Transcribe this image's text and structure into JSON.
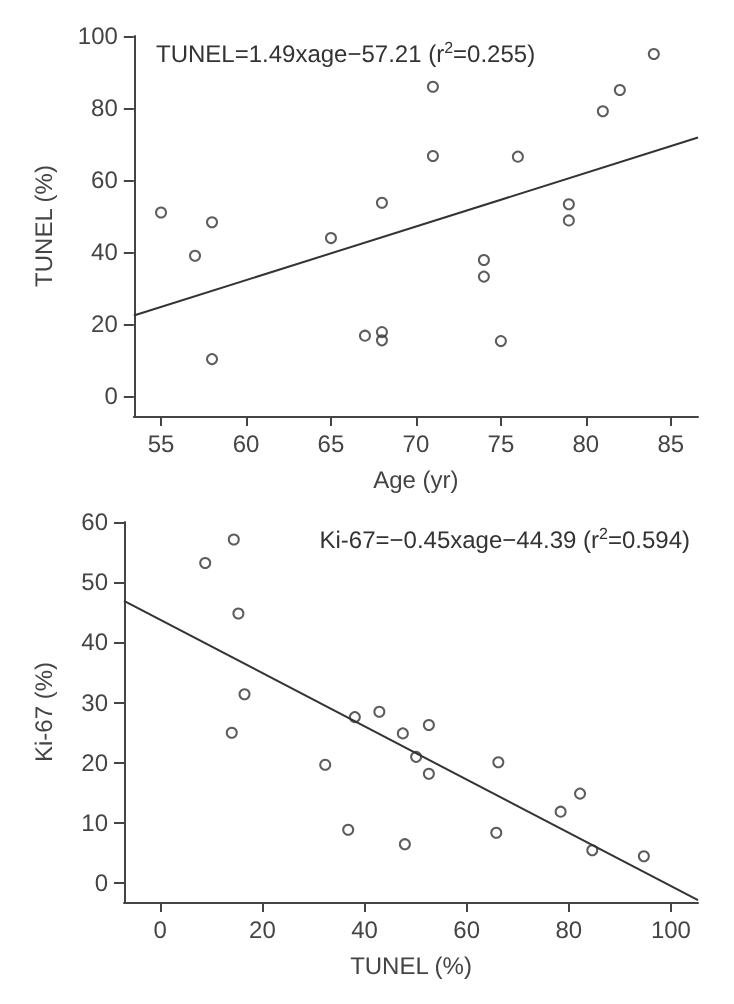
{
  "chart_data": [
    {
      "type": "scatter",
      "xlabel": "Age (yr)",
      "ylabel": "TUNEL (%)",
      "annotations": [
        "TUNEL=1.49xage−57.21 (r$^{2}$=0.255)"
      ],
      "xlim": [
        53.4,
        86.6
      ],
      "ylim": [
        -5.5,
        100
      ],
      "xticks": [
        55,
        60,
        65,
        70,
        75,
        80,
        85
      ],
      "yticks": [
        0,
        20,
        40,
        60,
        80,
        100
      ],
      "line_style": "solid",
      "series": [
        {
          "marker": "circle",
          "color": "#333333",
          "x": [
            55,
            57,
            58,
            58,
            65,
            67,
            68,
            68,
            68,
            71,
            71,
            74,
            74,
            75,
            76,
            79,
            79,
            81,
            82,
            84
          ],
          "values": [
            51,
            39,
            48.3,
            10.3,
            43.9,
            16.8,
            17.8,
            15.5,
            53.7,
            85.9,
            66.7,
            37.8,
            33.2,
            15.3,
            66.5,
            53.3,
            48.8,
            79.1,
            85,
            95
          ]
        },
        {
          "type": "line",
          "marker": "none",
          "color": "#333333",
          "x": [
            53.4,
            86.6
          ],
          "values": [
            22.4,
            71.8
          ]
        }
      ]
    },
    {
      "type": "scatter",
      "xlabel": "TUNEL (%)",
      "ylabel": "Ki-67 (%)",
      "annotations": [
        "Ki-67=−0.45xage−44.39 (r$^{2}$=0.594)"
      ],
      "xlim": [
        -7.1,
        105.3
      ],
      "ylim": [
        -3.1,
        60
      ],
      "xticks": [
        0,
        20,
        40,
        60,
        80,
        100
      ],
      "yticks": [
        0,
        10,
        20,
        30,
        40,
        50,
        60
      ],
      "line_style": "solid",
      "series": [
        {
          "marker": "circle",
          "color": "#333333",
          "x": [
            8.8,
            14.4,
            15.3,
            16.5,
            14,
            32.3,
            36.8,
            38.1,
            42.9,
            47.5,
            47.9,
            50.1,
            52.6,
            52.6,
            65.8,
            66.2,
            78.4,
            82.2,
            84.6,
            94.7
          ],
          "values": [
            53.2,
            57.1,
            44.8,
            31.4,
            25,
            19.7,
            8.9,
            27.6,
            28.5,
            24.9,
            6.5,
            21,
            26.3,
            18.2,
            8.4,
            20.1,
            11.9,
            14.9,
            5.5,
            4.5
          ]
        },
        {
          "type": "line",
          "marker": "none",
          "color": "#333333",
          "x": [
            -7.1,
            105.3
          ],
          "values": [
            46.9,
            -2.8
          ]
        }
      ]
    }
  ]
}
